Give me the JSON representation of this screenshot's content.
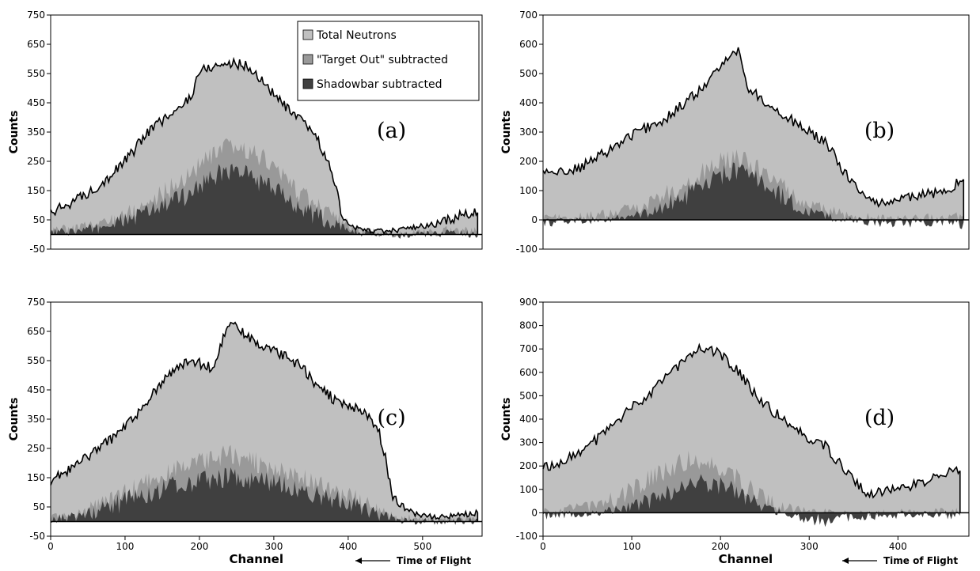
{
  "legend": {
    "entries": [
      {
        "label": "Total Neutrons",
        "color": "#c0c0c0"
      },
      {
        "label": "\"Target Out\" subtracted",
        "color": "#999999"
      },
      {
        "label": "Shadowbar subtracted",
        "color": "#404040"
      }
    ]
  },
  "annotation": {
    "time_of_flight": "Time of Flight"
  },
  "colors": {
    "total": "#c0c0c0",
    "target_out": "#999999",
    "shadowbar": "#404040",
    "outline": "#000000"
  },
  "chart_data": [
    {
      "type": "area",
      "panel_label": "(a)",
      "xlabel": "",
      "ylabel": "Counts",
      "xlim": [
        0,
        580
      ],
      "ylim": [
        -50,
        750
      ],
      "yticks": [
        -50,
        50,
        150,
        250,
        350,
        450,
        550,
        650,
        750
      ],
      "xticks": [],
      "total": {
        "x": [
          0,
          20,
          50,
          80,
          110,
          130,
          150,
          170,
          190,
          200,
          220,
          240,
          260,
          275,
          290,
          310,
          330,
          350,
          360,
          370,
          380,
          390,
          400,
          420,
          450,
          480,
          510,
          540,
          560,
          575
        ],
        "y": [
          70,
          100,
          140,
          200,
          280,
          350,
          390,
          420,
          480,
          560,
          575,
          585,
          580,
          550,
          510,
          450,
          400,
          360,
          320,
          260,
          200,
          80,
          30,
          15,
          10,
          20,
          30,
          55,
          70,
          75
        ]
      },
      "target_out": {
        "x": [
          0,
          30,
          60,
          90,
          120,
          150,
          180,
          200,
          220,
          240,
          260,
          280,
          300,
          320,
          340,
          360,
          380,
          400,
          420,
          460,
          500,
          540,
          575
        ],
        "y": [
          10,
          20,
          30,
          55,
          90,
          140,
          190,
          240,
          270,
          300,
          290,
          270,
          230,
          180,
          130,
          90,
          60,
          30,
          10,
          0,
          5,
          15,
          10
        ]
      },
      "shadowbar": {
        "x": [
          0,
          30,
          60,
          90,
          120,
          150,
          180,
          200,
          220,
          240,
          260,
          280,
          300,
          320,
          340,
          360,
          380,
          400,
          420,
          460,
          500,
          540,
          575
        ],
        "y": [
          5,
          10,
          20,
          40,
          65,
          95,
          130,
          170,
          200,
          220,
          210,
          180,
          150,
          120,
          90,
          60,
          35,
          15,
          5,
          -5,
          0,
          5,
          0
        ]
      }
    },
    {
      "type": "area",
      "panel_label": "(b)",
      "xlabel": "",
      "ylabel": "Counts",
      "xlim": [
        0,
        480
      ],
      "ylim": [
        -100,
        700
      ],
      "yticks": [
        -100,
        0,
        100,
        200,
        300,
        400,
        500,
        600,
        700
      ],
      "xticks": [],
      "total": {
        "x": [
          0,
          20,
          40,
          60,
          80,
          100,
          120,
          140,
          160,
          180,
          200,
          210,
          220,
          225,
          230,
          240,
          260,
          280,
          300,
          320,
          340,
          360,
          370,
          380,
          400,
          420,
          440,
          460,
          470,
          475
        ],
        "y": [
          160,
          165,
          175,
          210,
          250,
          290,
          320,
          350,
          400,
          450,
          520,
          570,
          580,
          520,
          450,
          430,
          380,
          340,
          300,
          260,
          160,
          90,
          60,
          60,
          70,
          80,
          90,
          110,
          130,
          140
        ]
      },
      "target_out": {
        "x": [
          0,
          40,
          80,
          100,
          120,
          140,
          160,
          180,
          200,
          220,
          240,
          260,
          280,
          300,
          340,
          380,
          420,
          460,
          475
        ],
        "y": [
          5,
          10,
          20,
          40,
          60,
          90,
          120,
          160,
          200,
          210,
          180,
          140,
          90,
          50,
          15,
          5,
          5,
          10,
          10
        ]
      },
      "shadowbar": {
        "x": [
          0,
          40,
          80,
          100,
          120,
          140,
          160,
          180,
          200,
          220,
          240,
          260,
          280,
          300,
          340,
          380,
          420,
          460,
          475
        ],
        "y": [
          -10,
          -5,
          5,
          10,
          25,
          50,
          80,
          110,
          150,
          170,
          140,
          100,
          60,
          25,
          0,
          -10,
          -10,
          -5,
          -20
        ]
      }
    },
    {
      "type": "area",
      "panel_label": "(c)",
      "xlabel": "Channel",
      "ylabel": "Counts",
      "xlim": [
        0,
        580
      ],
      "ylim": [
        -50,
        750
      ],
      "yticks": [
        -50,
        50,
        150,
        250,
        350,
        450,
        550,
        650,
        750
      ],
      "xticks": [
        0,
        100,
        200,
        300,
        400,
        500
      ],
      "total": {
        "x": [
          0,
          20,
          50,
          80,
          100,
          120,
          140,
          160,
          180,
          200,
          220,
          235,
          245,
          260,
          280,
          300,
          320,
          340,
          360,
          380,
          400,
          420,
          440,
          450,
          460,
          480,
          500,
          520,
          540,
          560,
          575
        ],
        "y": [
          140,
          170,
          220,
          280,
          320,
          380,
          450,
          500,
          540,
          540,
          520,
          650,
          690,
          640,
          600,
          580,
          560,
          520,
          460,
          420,
          400,
          380,
          320,
          220,
          80,
          40,
          20,
          15,
          20,
          25,
          35
        ]
      },
      "target_out": {
        "x": [
          0,
          40,
          80,
          120,
          160,
          200,
          240,
          280,
          320,
          360,
          400,
          440,
          460,
          500,
          540,
          575
        ],
        "y": [
          10,
          30,
          70,
          120,
          170,
          200,
          230,
          200,
          170,
          130,
          90,
          40,
          15,
          5,
          5,
          10
        ]
      },
      "shadowbar": {
        "x": [
          0,
          40,
          80,
          120,
          160,
          200,
          240,
          280,
          320,
          360,
          400,
          440,
          460,
          500,
          540,
          575
        ],
        "y": [
          5,
          20,
          50,
          90,
          120,
          140,
          150,
          140,
          120,
          90,
          60,
          25,
          10,
          0,
          0,
          5
        ]
      }
    },
    {
      "type": "area",
      "panel_label": "(d)",
      "xlabel": "Channel",
      "ylabel": "Counts",
      "xlim": [
        0,
        480
      ],
      "ylim": [
        -100,
        900
      ],
      "yticks": [
        -100,
        0,
        100,
        200,
        300,
        400,
        500,
        600,
        700,
        800,
        900
      ],
      "xticks": [
        0,
        100,
        200,
        300,
        400
      ],
      "total": {
        "x": [
          0,
          20,
          40,
          60,
          80,
          100,
          120,
          140,
          160,
          180,
          200,
          220,
          240,
          260,
          280,
          300,
          320,
          340,
          360,
          370,
          380,
          400,
          420,
          440,
          460,
          470
        ],
        "y": [
          190,
          220,
          260,
          310,
          380,
          450,
          510,
          580,
          660,
          710,
          680,
          600,
          500,
          430,
          380,
          320,
          280,
          180,
          100,
          80,
          85,
          100,
          120,
          150,
          180,
          190
        ]
      },
      "target_out": {
        "x": [
          0,
          40,
          80,
          100,
          120,
          140,
          160,
          180,
          200,
          220,
          240,
          260,
          280,
          300,
          340,
          380,
          420,
          470
        ],
        "y": [
          5,
          20,
          60,
          100,
          140,
          180,
          220,
          230,
          200,
          140,
          80,
          40,
          15,
          5,
          0,
          0,
          5,
          5
        ]
      },
      "shadowbar": {
        "x": [
          0,
          40,
          80,
          100,
          120,
          140,
          160,
          180,
          200,
          220,
          240,
          260,
          280,
          300,
          320,
          340,
          380,
          420,
          470
        ],
        "y": [
          -10,
          -5,
          10,
          25,
          50,
          80,
          110,
          130,
          120,
          80,
          40,
          10,
          -10,
          -25,
          -40,
          -20,
          -10,
          -5,
          -10
        ]
      }
    }
  ]
}
